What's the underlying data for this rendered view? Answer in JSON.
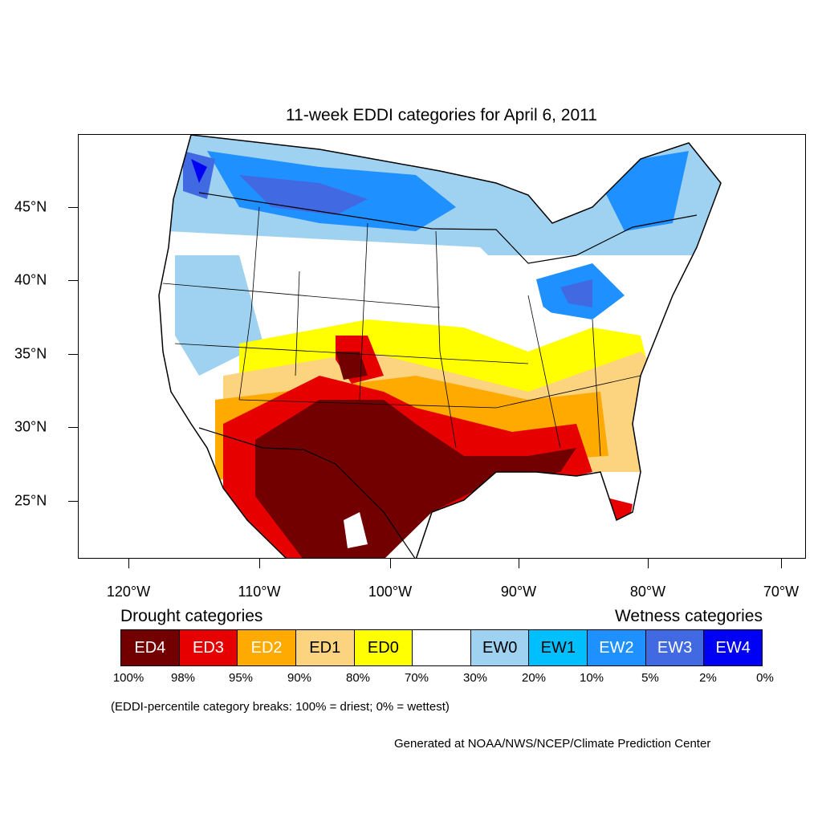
{
  "title": "11-week EDDI categories for April 6, 2011",
  "lat_labels": [
    "45°N",
    "40°N",
    "35°N",
    "30°N",
    "25°N"
  ],
  "lon_labels": [
    "120°W",
    "110°W",
    "100°W",
    "90°W",
    "80°W",
    "70°W"
  ],
  "legend": {
    "drought_heading": "Drought categories",
    "wetness_heading": "Wetness categories",
    "categories": [
      {
        "label": "ED4",
        "color": "#730000",
        "text_color": "#ffffff"
      },
      {
        "label": "ED3",
        "color": "#e60000",
        "text_color": "#ffffff"
      },
      {
        "label": "ED2",
        "color": "#ffaa00",
        "text_color": "#ffffff"
      },
      {
        "label": "ED1",
        "color": "#fcd37f",
        "text_color": "#000000"
      },
      {
        "label": "ED0",
        "color": "#ffff00",
        "text_color": "#000000"
      },
      {
        "label": "",
        "color": "#ffffff",
        "text_color": "#000000"
      },
      {
        "label": "EW0",
        "color": "#9fd2f0",
        "text_color": "#000000"
      },
      {
        "label": "EW1",
        "color": "#00bfff",
        "text_color": "#000000"
      },
      {
        "label": "EW2",
        "color": "#1e90ff",
        "text_color": "#ffffff"
      },
      {
        "label": "EW3",
        "color": "#4169e1",
        "text_color": "#ffffff"
      },
      {
        "label": "EW4",
        "color": "#0000f5",
        "text_color": "#ffffff"
      }
    ],
    "percentiles": [
      "100%",
      "98%",
      "95%",
      "90%",
      "80%",
      "70%",
      "30%",
      "20%",
      "10%",
      "5%",
      "2%",
      "0%"
    ]
  },
  "note": "(EDDI-percentile category breaks: 100% = driest; 0% = wettest)",
  "credit": "Generated at NOAA/NWS/NCEP/Climate Prediction Center"
}
